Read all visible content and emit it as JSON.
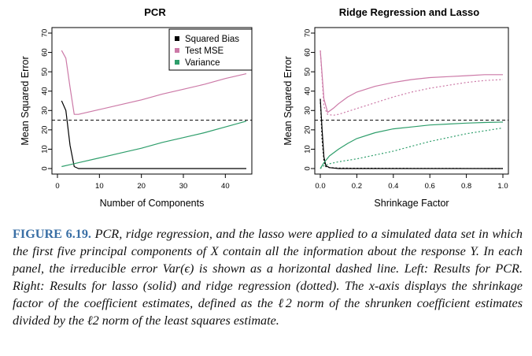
{
  "figure": {
    "label": "FIGURE 6.19.",
    "caption": "PCR, ridge regression, and the lasso were applied to a simulated data set in which the first five principal components of X contain all the information about the response Y. In each panel, the irreducible error Var(ϵ) is shown as a horizontal dashed line. Left: Results for PCR. Right: Results for lasso (solid) and ridge regression (dotted). The x-axis displays the shrinkage factor of the coefficient estimates, defined as the ℓ2 norm of the shrunken coefficient estimates divided by the ℓ2 norm of the least squares estimate."
  },
  "colors": {
    "bias": "#000000",
    "test_mse": "#cc79a7",
    "variance": "#2e9e6b",
    "irreducible": "#000000"
  },
  "chart_data": [
    {
      "type": "line",
      "title": "PCR",
      "xlabel": "Number of Components",
      "ylabel": "Mean Squared Error",
      "xlim": [
        0,
        45
      ],
      "ylim": [
        0,
        70
      ],
      "xticks": [
        0,
        10,
        20,
        30,
        40
      ],
      "yticks": [
        0,
        10,
        20,
        30,
        40,
        50,
        60,
        70
      ],
      "legend_position": "top-right",
      "irreducible_error": 25,
      "series": [
        {
          "name": "Squared Bias",
          "style": "solid",
          "color": "#000000",
          "x": [
            1,
            2,
            3,
            4,
            5,
            10,
            20,
            30,
            40,
            45
          ],
          "y": [
            35,
            30,
            12,
            1,
            0,
            0,
            0,
            0,
            0,
            0
          ]
        },
        {
          "name": "Test MSE",
          "style": "solid",
          "color": "#cc79a7",
          "x": [
            1,
            2,
            3,
            4,
            5,
            10,
            15,
            20,
            25,
            30,
            35,
            40,
            45
          ],
          "y": [
            61,
            57,
            42,
            28,
            28,
            30.5,
            33,
            35.5,
            38.5,
            41,
            43.5,
            46.5,
            49
          ]
        },
        {
          "name": "Variance",
          "style": "solid",
          "color": "#2e9e6b",
          "x": [
            1,
            3,
            5,
            10,
            15,
            20,
            25,
            30,
            35,
            40,
            45
          ],
          "y": [
            1,
            2,
            3,
            5.5,
            8,
            10.5,
            13.5,
            16,
            18.5,
            21.5,
            24.5
          ]
        }
      ]
    },
    {
      "type": "line",
      "title": "Ridge Regression and Lasso",
      "xlabel": "Shrinkage Factor",
      "ylabel": "Mean Squared Error",
      "xlim": [
        0,
        1
      ],
      "ylim": [
        0,
        70
      ],
      "xticks": [
        0.0,
        0.2,
        0.4,
        0.6,
        0.8,
        1.0
      ],
      "yticks": [
        0,
        10,
        20,
        30,
        40,
        50,
        60,
        70
      ],
      "irreducible_error": 25,
      "series": [
        {
          "method": "lasso",
          "component": "Squared Bias",
          "style": "solid",
          "color": "#000000",
          "x": [
            0,
            0.01,
            0.02,
            0.03,
            0.05,
            0.1,
            0.5,
            1.0
          ],
          "y": [
            36,
            20,
            6,
            1.5,
            0.5,
            0,
            0,
            0
          ]
        },
        {
          "method": "ridge",
          "component": "Squared Bias",
          "style": "dotted",
          "color": "#000000",
          "x": [
            0,
            0.01,
            0.02,
            0.03,
            0.05,
            0.1,
            0.5,
            1.0
          ],
          "y": [
            36,
            15,
            4,
            1,
            0.5,
            0.2,
            0.1,
            0
          ]
        },
        {
          "method": "lasso",
          "component": "Test MSE",
          "style": "solid",
          "color": "#cc79a7",
          "x": [
            0,
            0.02,
            0.04,
            0.07,
            0.1,
            0.15,
            0.2,
            0.3,
            0.4,
            0.5,
            0.6,
            0.7,
            0.8,
            0.9,
            1.0
          ],
          "y": [
            61,
            36,
            29,
            31,
            33.5,
            37,
            39.5,
            42.5,
            44.5,
            46,
            47,
            47.5,
            48,
            48.5,
            48.5
          ]
        },
        {
          "method": "ridge",
          "component": "Test MSE",
          "style": "dotted",
          "color": "#cc79a7",
          "x": [
            0,
            0.02,
            0.04,
            0.07,
            0.1,
            0.15,
            0.2,
            0.3,
            0.4,
            0.5,
            0.6,
            0.7,
            0.8,
            0.9,
            1.0
          ],
          "y": [
            61,
            32,
            28,
            27.5,
            28,
            29.5,
            31,
            34,
            37,
            39.5,
            41.5,
            43,
            44.5,
            45.5,
            46
          ]
        },
        {
          "method": "lasso",
          "component": "Variance",
          "style": "solid",
          "color": "#2e9e6b",
          "x": [
            0,
            0.02,
            0.05,
            0.1,
            0.15,
            0.2,
            0.3,
            0.4,
            0.5,
            0.6,
            0.7,
            0.8,
            0.9,
            1.0
          ],
          "y": [
            0,
            3,
            6.5,
            10,
            13,
            15.5,
            18.5,
            20.5,
            21.5,
            22.5,
            23,
            23.5,
            23.8,
            24
          ]
        },
        {
          "method": "ridge",
          "component": "Variance",
          "style": "dotted",
          "color": "#2e9e6b",
          "x": [
            0,
            0.02,
            0.05,
            0.1,
            0.2,
            0.3,
            0.4,
            0.5,
            0.6,
            0.7,
            0.8,
            0.9,
            1.0
          ],
          "y": [
            0,
            1.5,
            2.5,
            3.5,
            5,
            7,
            9,
            11.5,
            14,
            16,
            18,
            19.5,
            21
          ]
        }
      ]
    }
  ]
}
